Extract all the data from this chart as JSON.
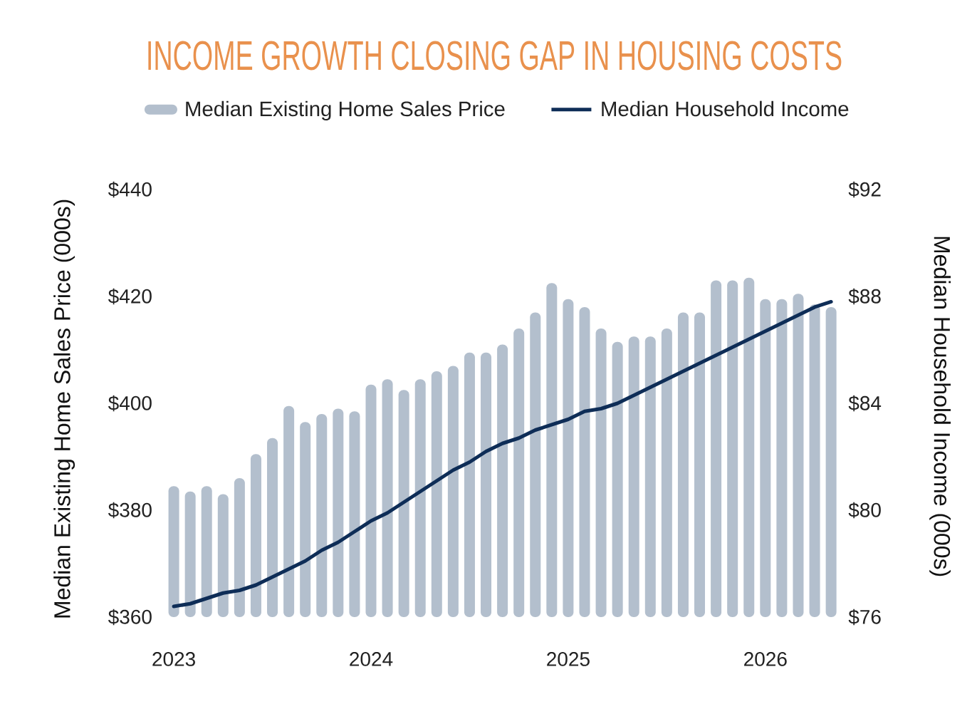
{
  "chart_data": {
    "type": "bar",
    "title": "INCOME GROWTH CLOSING GAP IN HOUSING COSTS",
    "ylabel": "Median Existing Home Sales Price (000s)",
    "y2label": "Median Household Income (000s)",
    "categories": [
      "2023",
      null,
      null,
      null,
      null,
      null,
      null,
      null,
      null,
      null,
      null,
      null,
      "2024",
      null,
      null,
      null,
      null,
      null,
      null,
      null,
      null,
      null,
      null,
      null,
      "2025",
      null,
      null,
      null,
      null,
      null,
      null,
      null,
      null,
      null,
      null,
      null,
      "2026",
      null,
      null,
      null,
      null
    ],
    "series": [
      {
        "name": "Median Existing Home Sales Price",
        "color": "#b3bfcd",
        "values": [
          384.5,
          383.5,
          384.5,
          383,
          386,
          390.5,
          393.5,
          399.5,
          396.5,
          398,
          399,
          398.5,
          403.5,
          404.5,
          402.5,
          404.5,
          406,
          407,
          409.5,
          409.5,
          411,
          414,
          417,
          422.5,
          419.5,
          418,
          414,
          411.5,
          412.5,
          412.5,
          414,
          417,
          417,
          423,
          423,
          423.5,
          419.5,
          419.5,
          420.5,
          418.5,
          418
        ]
      },
      {
        "name": "Median Household Income",
        "type": "line",
        "axis": "y2",
        "color": "#0e2d57",
        "values": [
          76.4,
          76.5,
          76.7,
          76.9,
          77.0,
          77.2,
          77.5,
          77.8,
          78.1,
          78.5,
          78.8,
          79.2,
          79.6,
          79.9,
          80.3,
          80.7,
          81.1,
          81.5,
          81.8,
          82.2,
          82.5,
          82.7,
          83.0,
          83.2,
          83.4,
          83.7,
          83.8,
          84.0,
          84.3,
          84.6,
          84.9,
          85.2,
          85.5,
          85.8,
          86.1,
          86.4,
          86.7,
          87.0,
          87.3,
          87.6,
          87.8
        ]
      }
    ],
    "ylim": [
      360,
      440
    ],
    "yticks": [
      {
        "value": 360,
        "label": "$360"
      },
      {
        "value": 380,
        "label": "$380"
      },
      {
        "value": 400,
        "label": "$400"
      },
      {
        "value": 420,
        "label": "$420"
      },
      {
        "value": 440,
        "label": "$440"
      }
    ],
    "y2lim": [
      76,
      92
    ],
    "y2ticks": [
      {
        "value": 76,
        "label": "$76"
      },
      {
        "value": 80,
        "label": "$80"
      },
      {
        "value": 84,
        "label": "$84"
      },
      {
        "value": 88,
        "label": "$88"
      },
      {
        "value": 92,
        "label": "$92"
      }
    ],
    "legend": "top"
  }
}
